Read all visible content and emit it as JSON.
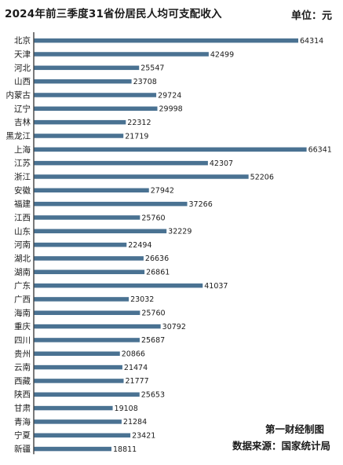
{
  "header": {
    "title": "2024年前三季度31省份居民人均可支配收入",
    "unit": "单位：元"
  },
  "footer": {
    "credit": "第一财经制图",
    "source": "数据来源：国家统计局"
  },
  "colors": {
    "bar": "#4a7292",
    "axis": "#222222"
  },
  "chart_data": {
    "type": "bar",
    "orientation": "horizontal",
    "title": "2024年前三季度31省份居民人均可支配收入",
    "unit": "元",
    "xlim": [
      0,
      66341
    ],
    "grid": false,
    "categories": [
      "北京",
      "天津",
      "河北",
      "山西",
      "内蒙古",
      "辽宁",
      "吉林",
      "黑龙江",
      "上海",
      "江苏",
      "浙江",
      "安徽",
      "福建",
      "江西",
      "山东",
      "河南",
      "湖北",
      "湖南",
      "广东",
      "广西",
      "海南",
      "重庆",
      "四川",
      "贵州",
      "云南",
      "西藏",
      "陕西",
      "甘肃",
      "青海",
      "宁夏",
      "新疆"
    ],
    "values": [
      64314,
      42499,
      25547,
      23708,
      29724,
      29998,
      22312,
      21719,
      66341,
      42307,
      52206,
      27942,
      37266,
      25760,
      32229,
      22494,
      26636,
      26861,
      41037,
      23032,
      25760,
      30792,
      25687,
      20866,
      21474,
      21777,
      25653,
      19108,
      21284,
      23421,
      18811
    ]
  }
}
